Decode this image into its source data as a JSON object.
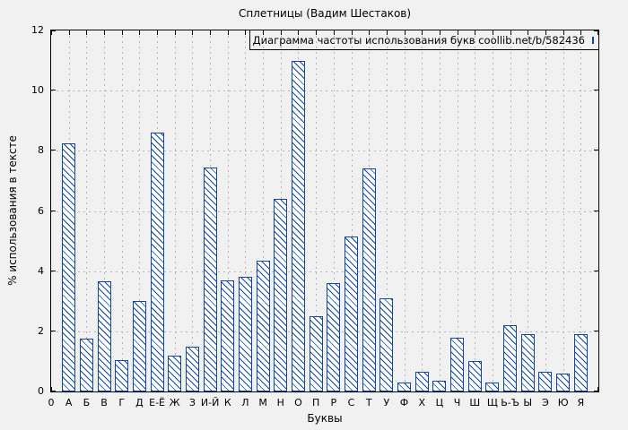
{
  "chart_data": {
    "type": "bar",
    "title": "Сплетницы (Вадим Шестаков)",
    "legend_label": "Диаграмма частоты использования букв coollib.net/b/582436",
    "xlabel": "Буквы",
    "ylabel": "% использования в тексте",
    "x_origin_label": "0",
    "categories": [
      "А",
      "Б",
      "В",
      "Г",
      "Д",
      "Е-Ё",
      "Ж",
      "З",
      "И-Й",
      "К",
      "Л",
      "М",
      "Н",
      "О",
      "П",
      "Р",
      "С",
      "Т",
      "У",
      "Ф",
      "Х",
      "Ц",
      "Ч",
      "Ш",
      "Щ",
      "Ь-Ъ",
      "Ы",
      "Э",
      "Ю",
      "Я"
    ],
    "values": [
      8.25,
      1.75,
      3.65,
      1.05,
      3.0,
      8.6,
      1.2,
      1.5,
      7.45,
      3.7,
      3.8,
      4.35,
      6.4,
      11.0,
      2.5,
      3.6,
      5.15,
      7.4,
      3.1,
      0.3,
      0.65,
      0.35,
      1.8,
      1.0,
      0.3,
      2.2,
      1.9,
      0.65,
      0.6,
      1.9
    ],
    "ylim": [
      0,
      12
    ],
    "yticks": [
      0,
      2,
      4,
      6,
      8,
      10,
      12
    ],
    "grid": "on",
    "legend_position": "top-right",
    "colors": {
      "background": "#f1f1f1",
      "bar_border": "#1146a5",
      "bar_fill": "#ffffff",
      "grid": "#b4b4b4",
      "axis": "#000000"
    }
  }
}
